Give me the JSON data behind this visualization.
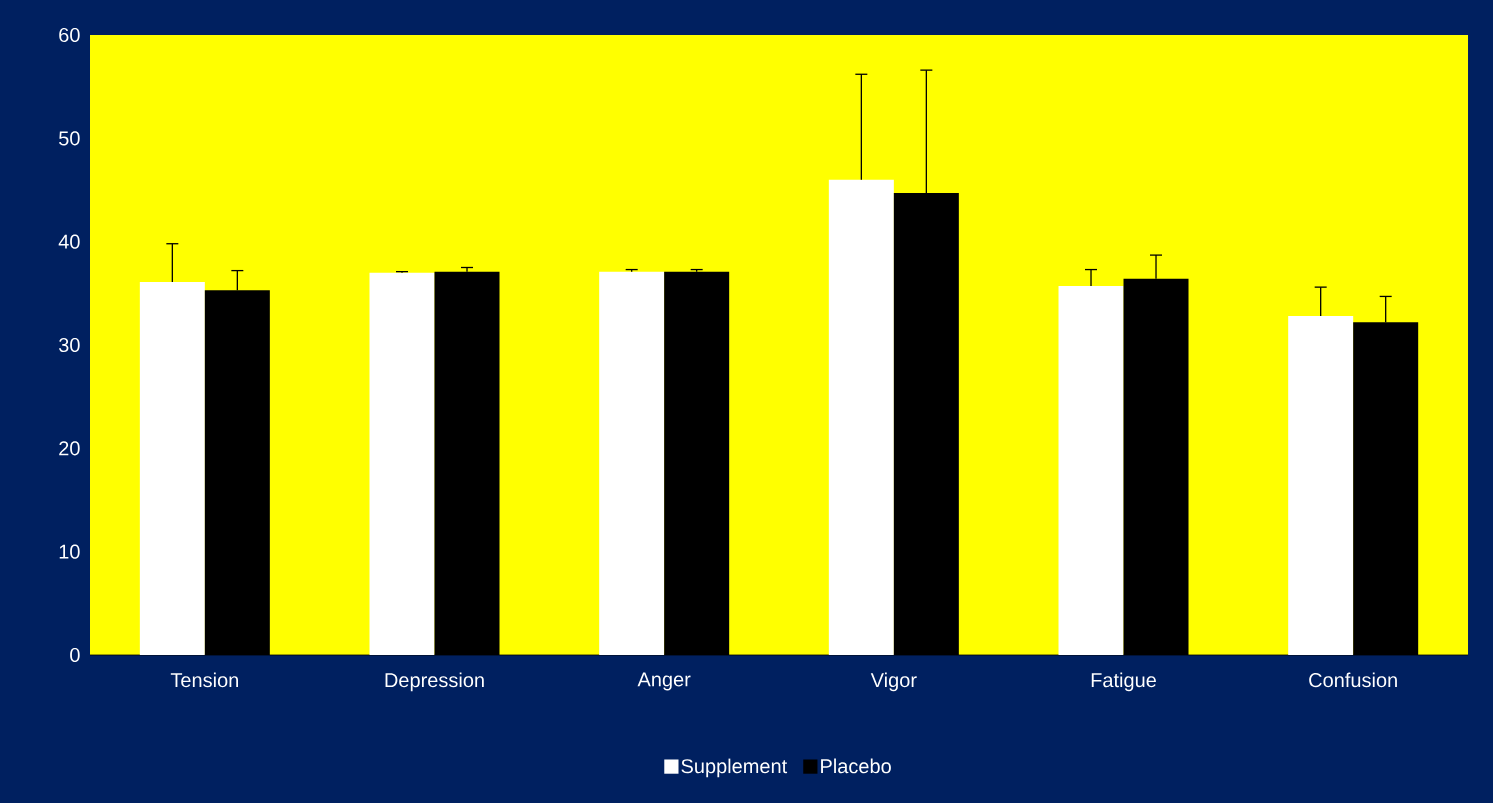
{
  "chart_data": {
    "type": "bar",
    "categories": [
      "Tension",
      "Depression",
      "Anger",
      "Vigor",
      "Fatigue",
      "Confusion"
    ],
    "series": [
      {
        "name": "Supplement",
        "color": "#ffffff",
        "values": [
          36.1,
          37.0,
          37.1,
          46.0,
          35.7,
          32.8
        ],
        "errors": [
          [
            36.1,
            39.8
          ],
          [
            37.0,
            37.1
          ],
          [
            37.1,
            37.3
          ],
          [
            46.0,
            56.2
          ],
          [
            35.7,
            37.3
          ],
          [
            32.8,
            35.6
          ]
        ]
      },
      {
        "name": "Placebo",
        "color": "#000000",
        "values": [
          35.3,
          37.1,
          37.1,
          44.7,
          36.4,
          32.2
        ],
        "errors": [
          [
            35.3,
            37.2
          ],
          [
            37.1,
            37.5
          ],
          [
            37.1,
            37.3
          ],
          [
            44.7,
            56.6
          ],
          [
            36.4,
            38.7
          ],
          [
            32.2,
            34.7
          ]
        ]
      }
    ],
    "ylim": [
      0,
      60
    ],
    "yticks": [
      0,
      10,
      20,
      30,
      40,
      50,
      60
    ],
    "grid": false,
    "legend": "bottom"
  }
}
